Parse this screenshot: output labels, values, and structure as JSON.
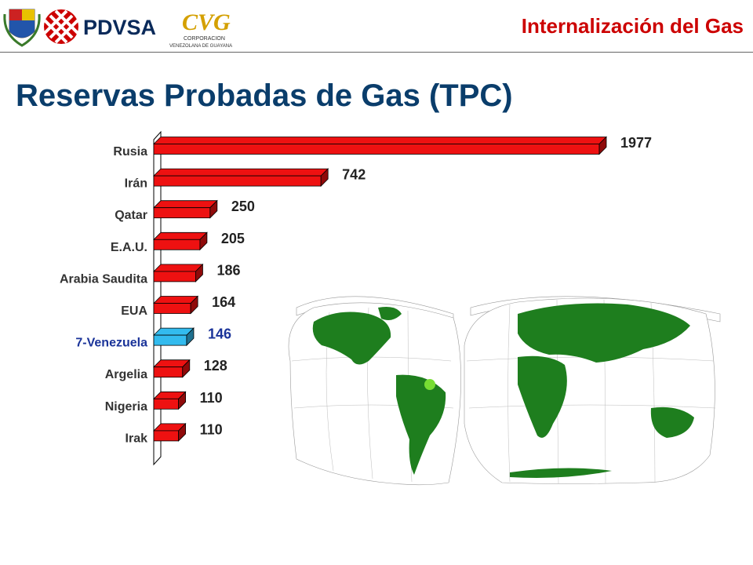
{
  "header": {
    "brand": "PDVSA",
    "cvg_logo_text": "CVG",
    "cvg_caption_1": "CORPORACION",
    "cvg_caption_2": "VENEZOLANA DE GUAYANA",
    "section_title": "Internalización del Gas"
  },
  "slide": {
    "title": "Reservas Probadas de Gas (TPC)"
  },
  "colors": {
    "bar": "#ee1111",
    "bar_highlight": "#33bbee",
    "title": "#0a3d6b",
    "section_title": "#cc0000",
    "highlight_text": "#1a3399",
    "land": "#1e7e1e",
    "venezuela_marker": "#77dd33"
  },
  "chart_data": {
    "type": "bar",
    "orientation": "horizontal",
    "categories": [
      "Rusia",
      "Irán",
      "Qatar",
      "E.A.U.",
      "Arabia Saudita",
      "EUA",
      "7-Venezuela",
      "Argelia",
      "Nigeria",
      "Irak"
    ],
    "values": [
      1977,
      742,
      250,
      205,
      186,
      164,
      146,
      128,
      110,
      110
    ],
    "data_labels": [
      "1977",
      "742",
      "250",
      "205",
      "186",
      "164",
      "146",
      "128",
      "110",
      "110"
    ],
    "highlight": "7-Venezuela",
    "title": "",
    "xlabel": "",
    "ylabel": "",
    "xlim": [
      0,
      2000
    ],
    "grid": false,
    "legend": "none"
  }
}
